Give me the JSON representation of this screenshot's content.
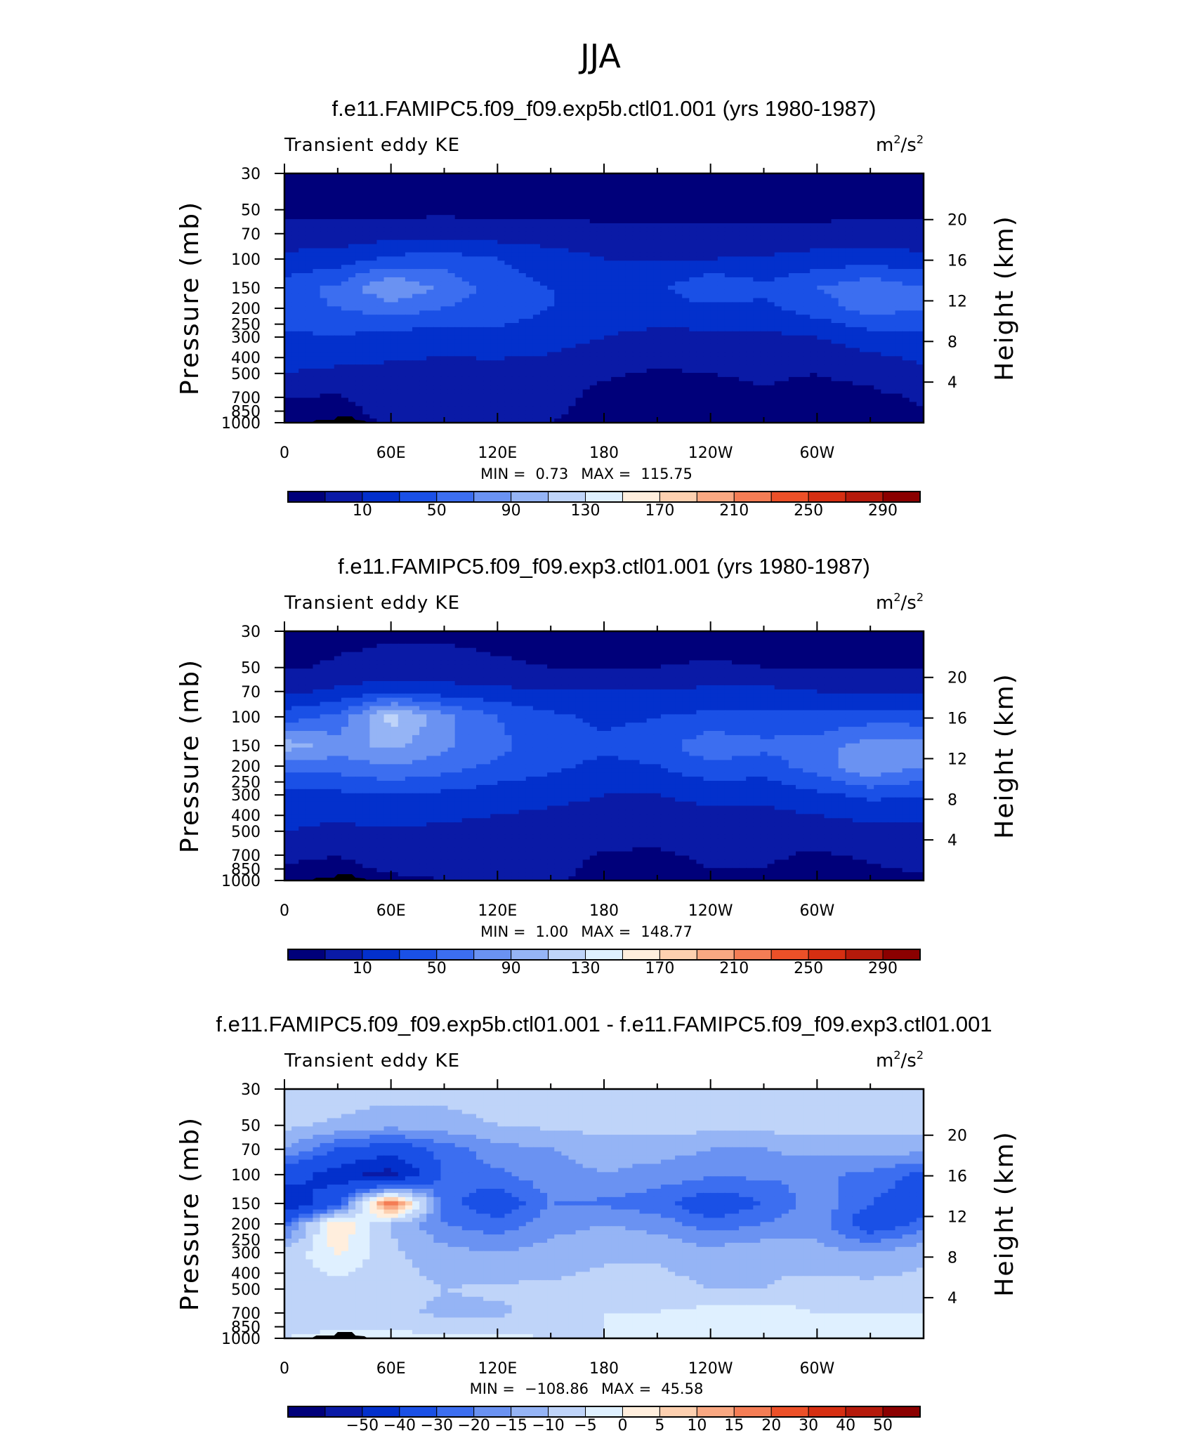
{
  "figure": {
    "title": "JJA"
  },
  "chart_data": [
    {
      "type": "heatmap",
      "title": "f.e11.FAMIPC5.f09_f09.exp5b.ctl01.001 (yrs 1980-1987)",
      "left_label": "Transient eddy KE",
      "units": {
        "base": "m",
        "exp": "2",
        "mid": "/s",
        "exp2": "2"
      },
      "ylabel": "Pressure (mb)",
      "y2label": "Height (km)",
      "x_ticks": [
        [
          "0",
          0
        ],
        [
          "60E",
          60
        ],
        [
          "120E",
          120
        ],
        [
          "180",
          180
        ],
        [
          "120W",
          240
        ],
        [
          "60W",
          300
        ]
      ],
      "y_ticks": [
        30,
        50,
        70,
        100,
        150,
        200,
        250,
        300,
        400,
        500,
        700,
        850,
        1000
      ],
      "y_tick_labels": [
        "30",
        "50",
        "70",
        "100",
        "150",
        "200",
        "250",
        "300",
        "400",
        "500",
        "700",
        "850",
        "1000"
      ],
      "height_ticks": [
        [
          "20",
          20
        ],
        [
          "16",
          16
        ],
        [
          "12",
          12
        ],
        [
          "8",
          8
        ],
        [
          "4",
          4
        ]
      ],
      "ylim": [
        1000,
        30
      ],
      "xlim": [
        0,
        360
      ],
      "stats": {
        "min_label": "MIN =",
        "min": "0.73",
        "max_label": "MAX =",
        "max": "115.75"
      },
      "colorbar": {
        "colors": [
          "#00007a",
          "#0a1aa6",
          "#0330cc",
          "#1a50e6",
          "#3c6ef0",
          "#6a92f2",
          "#95b4f5",
          "#bfd4f9",
          "#dff0ff",
          "#ffeedd",
          "#fdd0b0",
          "#f9a882",
          "#f47d55",
          "#ec5028",
          "#d62f12",
          "#b51a0b",
          "#8b0000"
        ],
        "labels": [
          [
            "10",
            1
          ],
          [
            "50",
            3
          ],
          [
            "90",
            5
          ],
          [
            "130",
            7
          ],
          [
            "170",
            9
          ],
          [
            "210",
            11
          ],
          [
            "250",
            13
          ],
          [
            "290",
            15
          ]
        ]
      },
      "field": {
        "x": [
          0,
          30,
          60,
          90,
          120,
          150,
          180,
          210,
          240,
          270,
          300,
          330,
          360
        ],
        "p": [
          30,
          50,
          70,
          100,
          150,
          200,
          300,
          500,
          700,
          1000
        ],
        "values": [
          [
            2,
            2,
            2,
            2,
            2,
            2,
            2,
            2,
            2,
            2,
            2,
            2,
            2
          ],
          [
            4,
            4,
            5,
            5,
            4,
            4,
            4,
            4,
            4,
            4,
            4,
            4,
            4
          ],
          [
            18,
            18,
            20,
            22,
            20,
            18,
            16,
            14,
            14,
            15,
            16,
            18,
            18
          ],
          [
            35,
            40,
            55,
            60,
            50,
            40,
            30,
            28,
            30,
            32,
            38,
            40,
            35
          ],
          [
            60,
            75,
            110,
            85,
            60,
            50,
            40,
            45,
            70,
            55,
            70,
            85,
            70
          ],
          [
            65,
            70,
            80,
            70,
            60,
            50,
            40,
            40,
            45,
            45,
            60,
            80,
            70
          ],
          [
            45,
            50,
            40,
            40,
            45,
            40,
            30,
            25,
            25,
            25,
            30,
            40,
            45
          ],
          [
            30,
            25,
            25,
            22,
            20,
            18,
            12,
            8,
            10,
            12,
            10,
            15,
            25
          ],
          [
            10,
            8,
            18,
            18,
            18,
            15,
            5,
            5,
            6,
            8,
            5,
            6,
            12
          ],
          [
            5,
            3,
            12,
            15,
            12,
            10,
            5,
            5,
            5,
            6,
            3,
            4,
            6
          ]
        ]
      }
    },
    {
      "type": "heatmap",
      "title": "f.e11.FAMIPC5.f09_f09.exp3.ctl01.001 (yrs 1980-1987)",
      "left_label": "Transient eddy KE",
      "units": {
        "base": "m",
        "exp": "2",
        "mid": "/s",
        "exp2": "2"
      },
      "ylabel": "Pressure (mb)",
      "y2label": "Height (km)",
      "x_ticks": [
        [
          "0",
          0
        ],
        [
          "60E",
          60
        ],
        [
          "120E",
          120
        ],
        [
          "180",
          180
        ],
        [
          "120W",
          240
        ],
        [
          "60W",
          300
        ]
      ],
      "y_ticks": [
        30,
        50,
        70,
        100,
        150,
        200,
        250,
        300,
        400,
        500,
        700,
        850,
        1000
      ],
      "y_tick_labels": [
        "30",
        "50",
        "70",
        "100",
        "150",
        "200",
        "250",
        "300",
        "400",
        "500",
        "700",
        "850",
        "1000"
      ],
      "height_ticks": [
        [
          "20",
          20
        ],
        [
          "16",
          16
        ],
        [
          "12",
          12
        ],
        [
          "8",
          8
        ],
        [
          "4",
          4
        ]
      ],
      "ylim": [
        1000,
        30
      ],
      "xlim": [
        0,
        360
      ],
      "stats": {
        "min_label": "MIN =",
        "min": "1.00",
        "max_label": "MAX =",
        "max": "148.77"
      },
      "colorbar": {
        "colors": [
          "#00007a",
          "#0a1aa6",
          "#0330cc",
          "#1a50e6",
          "#3c6ef0",
          "#6a92f2",
          "#95b4f5",
          "#bfd4f9",
          "#dff0ff",
          "#ffeedd",
          "#fdd0b0",
          "#f9a882",
          "#f47d55",
          "#ec5028",
          "#d62f12",
          "#b51a0b",
          "#8b0000"
        ],
        "labels": [
          [
            "10",
            1
          ],
          [
            "50",
            3
          ],
          [
            "90",
            5
          ],
          [
            "130",
            7
          ],
          [
            "170",
            9
          ],
          [
            "210",
            11
          ],
          [
            "250",
            13
          ],
          [
            "290",
            15
          ]
        ]
      },
      "field": {
        "x": [
          0,
          30,
          60,
          90,
          120,
          150,
          180,
          210,
          240,
          270,
          300,
          330,
          360
        ],
        "p": [
          30,
          50,
          70,
          100,
          150,
          200,
          300,
          500,
          700,
          1000
        ],
        "values": [
          [
            3,
            6,
            8,
            8,
            6,
            4,
            3,
            3,
            3,
            3,
            3,
            3,
            3
          ],
          [
            8,
            12,
            14,
            14,
            12,
            10,
            10,
            10,
            12,
            10,
            8,
            8,
            8
          ],
          [
            25,
            35,
            45,
            40,
            35,
            30,
            30,
            30,
            35,
            35,
            30,
            28,
            25
          ],
          [
            60,
            75,
            140,
            95,
            70,
            55,
            45,
            50,
            55,
            55,
            55,
            60,
            60
          ],
          [
            120,
            100,
            115,
            95,
            75,
            60,
            55,
            60,
            85,
            75,
            80,
            100,
            95
          ],
          [
            80,
            80,
            90,
            80,
            65,
            55,
            45,
            50,
            65,
            60,
            80,
            110,
            90
          ],
          [
            45,
            45,
            50,
            45,
            40,
            35,
            30,
            30,
            35,
            35,
            45,
            55,
            50
          ],
          [
            30,
            25,
            28,
            25,
            22,
            20,
            18,
            15,
            18,
            18,
            18,
            22,
            25
          ],
          [
            12,
            10,
            15,
            15,
            15,
            15,
            8,
            8,
            12,
            12,
            8,
            12,
            15
          ],
          [
            6,
            5,
            8,
            10,
            12,
            12,
            6,
            6,
            8,
            8,
            5,
            6,
            8
          ]
        ]
      }
    },
    {
      "type": "heatmap",
      "title": "f.e11.FAMIPC5.f09_f09.exp5b.ctl01.001 - f.e11.FAMIPC5.f09_f09.exp3.ctl01.001",
      "left_label": "Transient eddy KE",
      "units": {
        "base": "m",
        "exp": "2",
        "mid": "/s",
        "exp2": "2"
      },
      "ylabel": "Pressure (mb)",
      "y2label": "Height (km)",
      "x_ticks": [
        [
          "0",
          0
        ],
        [
          "60E",
          60
        ],
        [
          "120E",
          120
        ],
        [
          "180",
          180
        ],
        [
          "120W",
          240
        ],
        [
          "60W",
          300
        ]
      ],
      "y_ticks": [
        30,
        50,
        70,
        100,
        150,
        200,
        250,
        300,
        400,
        500,
        700,
        850,
        1000
      ],
      "y_tick_labels": [
        "30",
        "50",
        "70",
        "100",
        "150",
        "200",
        "250",
        "300",
        "400",
        "500",
        "700",
        "850",
        "1000"
      ],
      "height_ticks": [
        [
          "20",
          20
        ],
        [
          "16",
          16
        ],
        [
          "12",
          12
        ],
        [
          "8",
          8
        ],
        [
          "4",
          4
        ]
      ],
      "ylim": [
        1000,
        30
      ],
      "xlim": [
        0,
        360
      ],
      "stats": {
        "min_label": "MIN =",
        "min": "−108.86",
        "max_label": "MAX =",
        "max": "45.58"
      },
      "colorbar": {
        "colors": [
          "#00007a",
          "#0a1aa6",
          "#0330cc",
          "#1a50e6",
          "#3c6ef0",
          "#6a92f2",
          "#95b4f5",
          "#bfd4f9",
          "#dff0ff",
          "#ffeedd",
          "#fdd0b0",
          "#f9a882",
          "#f47d55",
          "#ec5028",
          "#d62f12",
          "#b51a0b",
          "#8b0000"
        ],
        "labels": [
          [
            "−50",
            1
          ],
          [
            "−40",
            2
          ],
          [
            "−30",
            3
          ],
          [
            "−20",
            4
          ],
          [
            "−15",
            5
          ],
          [
            "−10",
            6
          ],
          [
            "−5",
            7
          ],
          [
            "0",
            8
          ],
          [
            "5",
            9
          ],
          [
            "10",
            10
          ],
          [
            "15",
            11
          ],
          [
            "20",
            12
          ],
          [
            "30",
            13
          ],
          [
            "40",
            14
          ],
          [
            "50",
            15
          ]
        ]
      },
      "field": {
        "x": [
          0,
          30,
          60,
          90,
          120,
          150,
          180,
          210,
          240,
          270,
          300,
          330,
          360
        ],
        "p": [
          30,
          50,
          70,
          100,
          150,
          200,
          300,
          500,
          700,
          1000
        ],
        "values": [
          [
            -1,
            -2,
            -3,
            -3,
            -2,
            -1,
            0,
            0,
            0,
            0,
            0,
            0,
            0
          ],
          [
            -4,
            -6,
            -8,
            -7,
            -5,
            -4,
            -3,
            -3,
            -3,
            -3,
            -3,
            -3,
            -3
          ],
          [
            -10,
            -20,
            -25,
            -18,
            -12,
            -10,
            -8,
            -8,
            -10,
            -10,
            -8,
            -8,
            -8
          ],
          [
            -25,
            -35,
            -45,
            -18,
            -16,
            -12,
            -10,
            -12,
            -14,
            -14,
            -14,
            -16,
            -22
          ],
          [
            -40,
            -22,
            25,
            -18,
            -25,
            -15,
            -16,
            -18,
            -25,
            -20,
            -12,
            -20,
            -25
          ],
          [
            -18,
            10,
            -5,
            -15,
            -18,
            -12,
            -10,
            -12,
            -18,
            -15,
            -12,
            -25,
            -18
          ],
          [
            -4,
            6,
            -4,
            -8,
            -10,
            -8,
            -6,
            -6,
            -8,
            -6,
            -8,
            -10,
            -6
          ],
          [
            -4,
            -3,
            -3,
            -5,
            -4,
            -4,
            -3,
            -3,
            -5,
            -5,
            -3,
            -3,
            -3
          ],
          [
            -2,
            -2,
            -4,
            -6,
            -6,
            -3,
            0,
            0,
            2,
            3,
            0,
            0,
            0
          ],
          [
            0,
            1,
            2,
            1,
            1,
            0,
            0,
            0,
            0,
            0,
            0,
            0,
            0
          ]
        ]
      }
    }
  ]
}
